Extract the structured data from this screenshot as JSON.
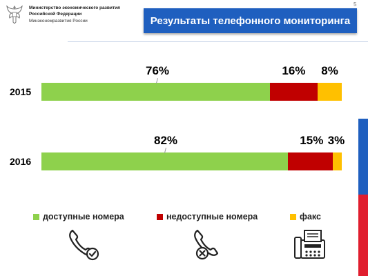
{
  "header": {
    "ministry_line1": "Министерство экономического развития",
    "ministry_line2": "Российской Федерации",
    "ministry_line3": "Минэкономразвития России",
    "title": "Результаты телефонного мониторинга",
    "page_number": "5"
  },
  "colors": {
    "available": "#8ed14c",
    "unavailable": "#c00000",
    "fax": "#ffc000",
    "title_bg": "#1f5fbf"
  },
  "chart_data": {
    "type": "bar",
    "orientation": "horizontal",
    "stacked": true,
    "normalized": true,
    "categories": [
      "2015",
      "2016"
    ],
    "series": [
      {
        "name": "доступные номера",
        "values": [
          76,
          82
        ],
        "labels": [
          "76%",
          "82%"
        ]
      },
      {
        "name": "недоступные номера",
        "values": [
          16,
          15
        ],
        "labels": [
          "16%",
          "15%"
        ]
      },
      {
        "name": "факс",
        "values": [
          8,
          3
        ],
        "labels": [
          "8%",
          "3%"
        ]
      }
    ],
    "legend_position": "bottom",
    "grid": false,
    "title": "",
    "xlabel": "",
    "ylabel": ""
  },
  "icons": [
    "phone-check-icon",
    "phone-cross-icon",
    "fax-machine-icon"
  ]
}
